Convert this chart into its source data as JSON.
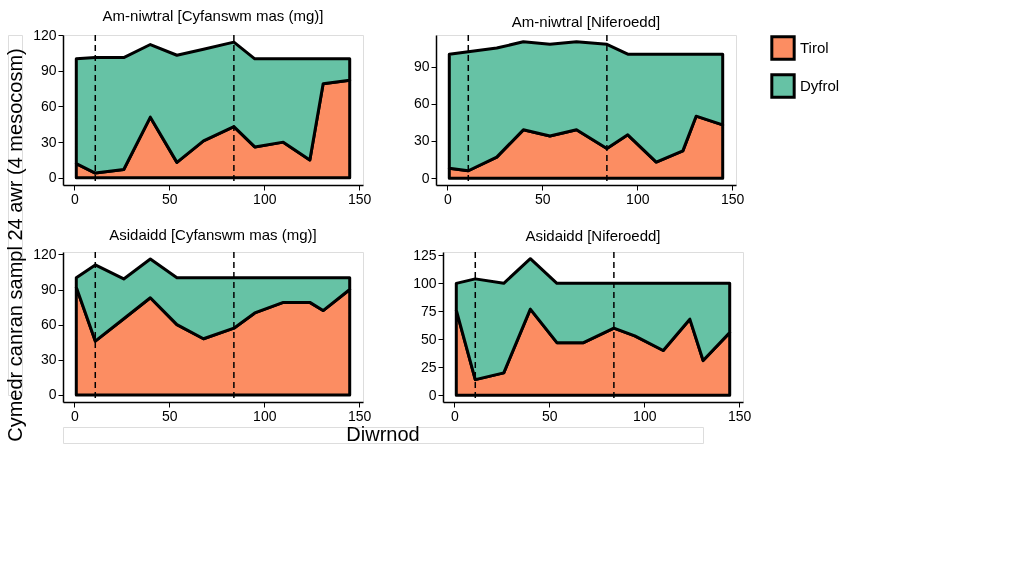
{
  "chart_data": [
    {
      "type": "area",
      "title": "Am-niwtral [Cyfanswm mas (mg)]",
      "ylabel": "Cymedr canran sampl 24 awr (4 mesocosm)",
      "stacked": true,
      "legend": "right",
      "grid": false,
      "x": [
        1,
        11,
        26,
        40,
        54,
        68,
        84,
        95,
        110,
        124,
        131,
        145
      ],
      "xlim": [
        -6,
        152
      ],
      "xticks": [
        0,
        50,
        100,
        150
      ],
      "ylim": [
        -6,
        120
      ],
      "yticks": [
        0,
        30,
        60,
        90,
        120
      ],
      "series": [
        {
          "name": "Tirol",
          "color": "#fc8d62",
          "values": [
            12,
            4,
            7,
            51,
            13,
            31,
            43,
            26,
            30,
            15,
            79,
            82
          ]
        },
        {
          "name": "Dyfrol",
          "color": "#66c2a5",
          "values": [
            88,
            97,
            94,
            61,
            90,
            77,
            71,
            74,
            70,
            85,
            21,
            18
          ]
        }
      ],
      "ref_lines": [
        {
          "axis": "x",
          "value": 11,
          "line_style": "dashed"
        },
        {
          "axis": "x",
          "value": 84,
          "line_style": "dashed"
        }
      ]
    },
    {
      "type": "area",
      "title": "Am-niwtral [Niferoedd]",
      "stacked": true,
      "legend": "right",
      "grid": false,
      "x": [
        1,
        11,
        26,
        40,
        54,
        68,
        84,
        95,
        110,
        124,
        131,
        145
      ],
      "xlim": [
        -6,
        152
      ],
      "xticks": [
        0,
        50,
        100,
        150
      ],
      "ylim": [
        -5.5,
        115.5
      ],
      "yticks": [
        0,
        30,
        60,
        90
      ],
      "series": [
        {
          "name": "Tirol",
          "color": "#fc8d62",
          "values": [
            8,
            6,
            17,
            39,
            34,
            39,
            24,
            35,
            13,
            22,
            50,
            43
          ]
        },
        {
          "name": "Dyfrol",
          "color": "#66c2a5",
          "values": [
            92,
            96,
            88,
            71,
            74,
            71,
            84,
            65,
            87,
            78,
            50,
            57
          ]
        }
      ],
      "ref_lines": [
        {
          "axis": "x",
          "value": 11,
          "line_style": "dashed"
        },
        {
          "axis": "x",
          "value": 84,
          "line_style": "dashed"
        }
      ]
    },
    {
      "type": "area",
      "title": "Asidaidd [Cyfanswm mas (mg)]",
      "xlabel": "Diwrnod",
      "stacked": true,
      "legend": "right",
      "grid": false,
      "x": [
        1,
        11,
        26,
        40,
        54,
        68,
        84,
        95,
        110,
        124,
        131,
        145
      ],
      "xlim": [
        -6,
        152
      ],
      "xticks": [
        0,
        50,
        100,
        150
      ],
      "ylim": [
        -6,
        122
      ],
      "yticks": [
        0,
        30,
        60,
        90,
        120
      ],
      "series": [
        {
          "name": "Tirol",
          "color": "#fc8d62",
          "values": [
            92,
            46,
            65,
            83,
            60,
            48,
            57,
            70,
            79,
            79,
            72,
            90
          ]
        },
        {
          "name": "Dyfrol",
          "color": "#66c2a5",
          "values": [
            8,
            65,
            34,
            33,
            40,
            52,
            43,
            30,
            21,
            21,
            28,
            10
          ]
        }
      ],
      "ref_lines": [
        {
          "axis": "x",
          "value": 11,
          "line_style": "dashed"
        },
        {
          "axis": "x",
          "value": 84,
          "line_style": "dashed"
        }
      ]
    },
    {
      "type": "area",
      "title": "Asidaidd [Niferoedd]",
      "stacked": true,
      "legend": "right",
      "grid": false,
      "x": [
        1,
        11,
        26,
        40,
        54,
        68,
        84,
        95,
        110,
        124,
        131,
        145
      ],
      "xlim": [
        -6,
        152
      ],
      "xticks": [
        0,
        50,
        100,
        150
      ],
      "ylim": [
        -6,
        128
      ],
      "yticks": [
        0,
        25,
        50,
        75,
        100,
        125
      ],
      "series": [
        {
          "name": "Tirol",
          "color": "#fc8d62",
          "values": [
            76,
            14,
            20,
            77,
            47,
            47,
            60,
            53,
            40,
            68,
            31,
            56
          ]
        },
        {
          "name": "Dyfrol",
          "color": "#66c2a5",
          "values": [
            24,
            90,
            80,
            45,
            53,
            53,
            40,
            47,
            60,
            32,
            69,
            44
          ]
        }
      ],
      "ref_lines": [
        {
          "axis": "x",
          "value": 11,
          "line_style": "dashed"
        },
        {
          "axis": "x",
          "value": 84,
          "line_style": "dashed"
        }
      ]
    }
  ]
}
